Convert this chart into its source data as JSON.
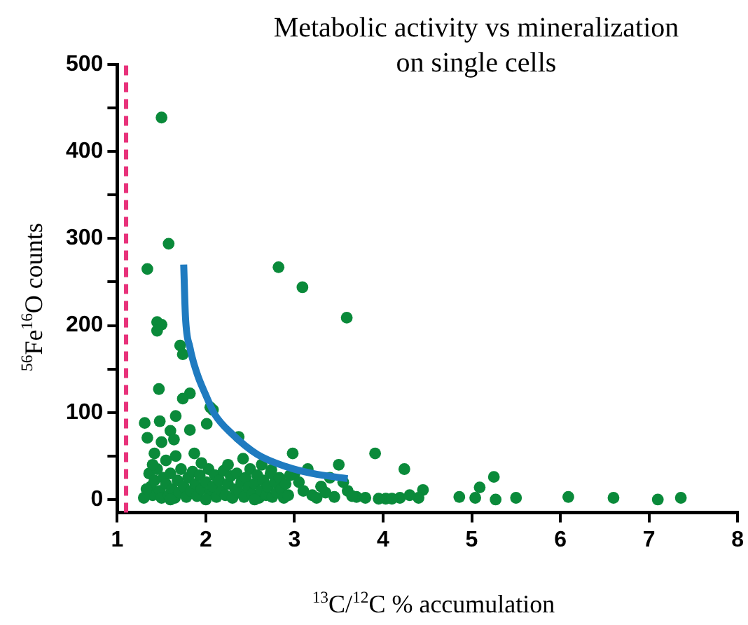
{
  "chart_data": {
    "type": "scatter",
    "title": "Metabolic activity vs mineralization\non single cells",
    "xlabel": "$^{13}$C/$^{12}$C % accumulation",
    "ylabel": "$^{56}$Fe$^{16}$O counts",
    "xlim": [
      1,
      8
    ],
    "xticks": [
      1,
      2,
      3,
      4,
      5,
      6,
      7,
      8
    ],
    "ylim": [
      -15,
      500
    ],
    "yticks": [
      0,
      {
        "value": 50,
        "label": null
      },
      100,
      {
        "value": 150,
        "label": null
      },
      200,
      {
        "value": 250,
        "label": null
      },
      300,
      {
        "value": 350,
        "label": null
      },
      400,
      {
        "value": 450,
        "label": null
      },
      500
    ],
    "grid": false,
    "legend": false,
    "marker": "circle",
    "ref_lines": [
      {
        "axis": "x",
        "value": 1.1,
        "color": "#e8317a",
        "line_style": "dashed"
      }
    ],
    "series": [
      {
        "type": "scatter",
        "color": "#0a8a3a",
        "x": [
          1.5,
          1.58,
          1.34,
          2.82,
          3.09,
          3.59,
          1.45,
          1.5,
          1.45,
          1.71,
          1.74,
          1.47,
          1.82,
          1.74,
          2.05,
          2.08,
          1.31,
          1.48,
          1.66,
          1.82,
          2.01,
          1.34,
          1.5,
          1.6,
          1.64,
          2.37,
          2.98,
          3.91,
          4.24,
          3.5,
          1.42,
          1.66,
          1.87,
          2.42,
          2.63,
          2.74,
          4.45,
          4.4,
          4.19,
          4.03,
          4.86,
          5.09,
          5.04,
          5.25,
          5.27,
          5.5,
          6.09,
          6.6,
          7.1,
          7.36,
          3.7,
          3.8,
          3.95,
          4.1,
          4.3,
          3.6,
          3.55,
          3.4,
          3.3,
          3.2,
          3.05,
          3.0,
          3.65,
          3.45,
          1.36,
          1.38,
          1.4,
          1.42,
          1.45,
          1.48,
          1.5,
          1.52,
          1.55,
          1.58,
          1.6,
          1.62,
          1.65,
          1.68,
          1.7,
          1.72,
          1.75,
          1.78,
          1.8,
          1.83,
          1.85,
          1.88,
          1.9,
          1.93,
          1.95,
          2.0,
          2.03,
          2.05,
          2.08,
          2.1,
          2.12,
          2.15,
          2.18,
          2.2,
          2.22,
          2.25,
          2.28,
          2.3,
          2.33,
          2.35,
          2.38,
          2.4,
          2.43,
          2.45,
          2.48,
          2.5,
          2.52,
          2.55,
          2.58,
          2.6,
          2.62,
          2.65,
          2.68,
          2.7,
          2.73,
          2.75,
          2.78,
          2.8,
          2.83,
          2.85,
          2.88,
          2.9,
          2.93,
          2.95,
          1.4,
          1.55,
          1.95,
          2.25,
          1.3,
          1.33,
          3.1,
          3.25,
          3.35,
          3.15,
          2.55,
          1.6,
          2.0
        ],
        "values": [
          439,
          294,
          265,
          267,
          244,
          209,
          204,
          201,
          194,
          177,
          167,
          127,
          122,
          116,
          106,
          103,
          88,
          90,
          96,
          80,
          87,
          71,
          66,
          79,
          69,
          72,
          53,
          53,
          35,
          40,
          53,
          50,
          53,
          47,
          40,
          34,
          11,
          2,
          2,
          1,
          3,
          14,
          2,
          26,
          0,
          2,
          3,
          2,
          0,
          2,
          3,
          2,
          1,
          1,
          5,
          10,
          20,
          25,
          15,
          5,
          20,
          30,
          4,
          3,
          30,
          15,
          5,
          22,
          35,
          10,
          2,
          25,
          18,
          5,
          30,
          12,
          2,
          22,
          8,
          35,
          15,
          3,
          25,
          10,
          32,
          18,
          4,
          28,
          12,
          20,
          35,
          8,
          15,
          28,
          3,
          22,
          10,
          33,
          5,
          18,
          27,
          2,
          12,
          30,
          8,
          20,
          3,
          25,
          14,
          35,
          6,
          18,
          28,
          2,
          10,
          22,
          5,
          15,
          30,
          3,
          20,
          8,
          25,
          12,
          2,
          18,
          5,
          28,
          40,
          45,
          42,
          40,
          2,
          12,
          10,
          2,
          8,
          35,
          0,
          0,
          0
        ]
      },
      {
        "type": "line",
        "color": "#1f7bc0",
        "marker": "none",
        "x": [
          1.75,
          1.77,
          1.82,
          1.9,
          2.0,
          2.1,
          2.3,
          2.58,
          2.9,
          3.2,
          3.6
        ],
        "values": [
          270,
          210,
          175,
          145,
          120,
          98,
          75,
          52,
          38,
          30,
          24
        ]
      }
    ]
  }
}
